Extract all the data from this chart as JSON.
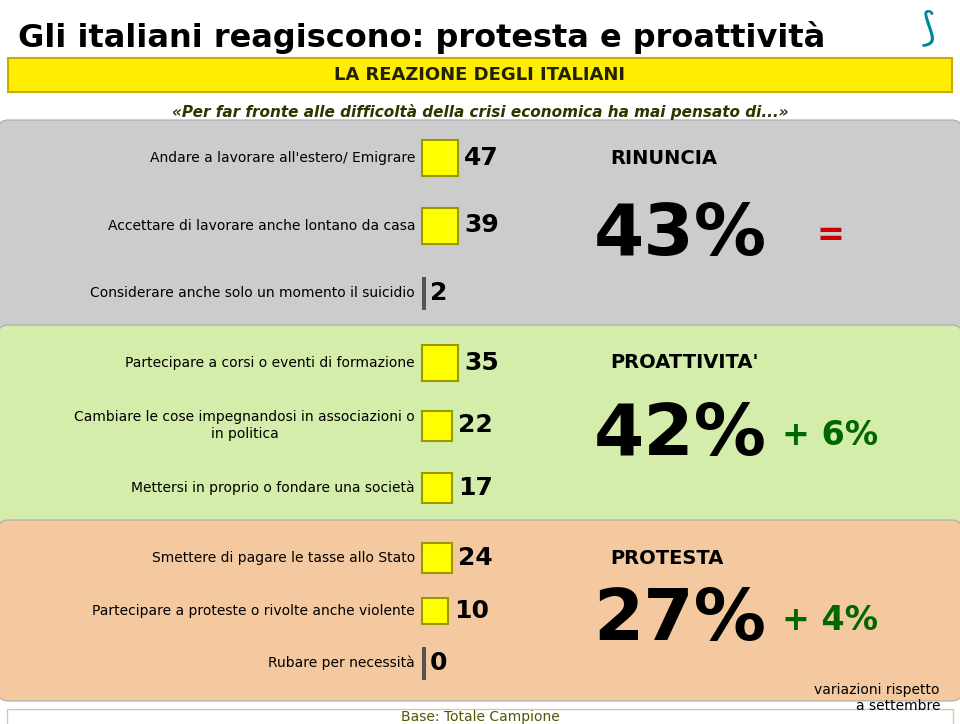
{
  "title": "Gli italiani reagiscono: protesta e proattività",
  "yellow_banner": "LA REAZIONE DEGLI ITALIANI",
  "subtitle": "«Per far fronte alle difficoltà della crisi economica ha mai pensato di...»",
  "sections": [
    {
      "bg_color": "#cccccc",
      "items": [
        {
          "label": "Andare a lavorare all'estero/ Emigrare",
          "value": 47,
          "has_bar": true
        },
        {
          "label": "Accettare di lavorare anche lontano da casa",
          "value": 39,
          "has_bar": true
        },
        {
          "label": "Considerare anche solo un momento il suicidio",
          "value": 2,
          "has_bar": false
        }
      ],
      "category": "RINUNCIA",
      "percent": "43%",
      "change": "=",
      "change_color": "#cc0000",
      "bar_color": "#ffff00",
      "bar_border": "#999900"
    },
    {
      "bg_color": "#d4edaa",
      "items": [
        {
          "label": "Partecipare a corsi o eventi di formazione",
          "value": 35,
          "has_bar": true
        },
        {
          "label": "Cambiare le cose impegnandosi in associazioni o\nin politica",
          "value": 22,
          "has_bar": true
        },
        {
          "label": "Mettersi in proprio o fondare una società",
          "value": 17,
          "has_bar": true
        }
      ],
      "category": "PROATTIVITA'",
      "percent": "42%",
      "change": "+ 6%",
      "change_color": "#006600",
      "bar_color": "#ffff00",
      "bar_border": "#999900"
    },
    {
      "bg_color": "#f5c9a0",
      "items": [
        {
          "label": "Smettere di pagare le tasse allo Stato",
          "value": 24,
          "has_bar": true
        },
        {
          "label": "Partecipare a proteste o rivolte anche violente",
          "value": 10,
          "has_bar": true
        },
        {
          "label": "Rubare per necessità",
          "value": 0,
          "has_bar": false
        }
      ],
      "category": "PROTESTA",
      "percent": "27%",
      "change": "+ 4%",
      "change_color": "#006600",
      "bar_color": "#ffff00",
      "bar_border": "#999900"
    }
  ],
  "footer": "Base: Totale Campione",
  "footer_note1": "variazioni rispetto",
  "footer_note2": "a settembre"
}
